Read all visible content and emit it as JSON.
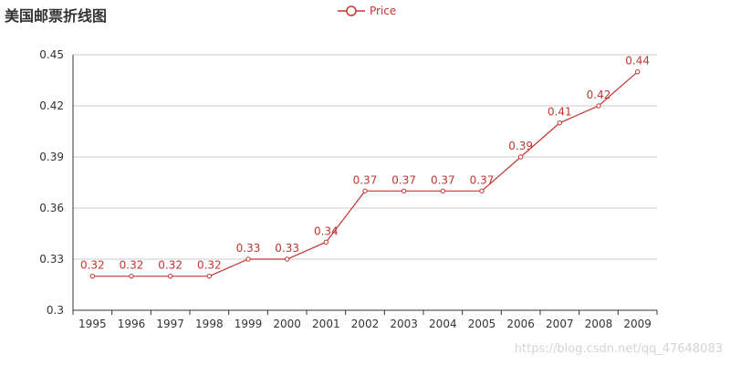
{
  "title": "美国邮票折线图",
  "watermark": "https://blog.csdn.net/qq_47648083",
  "colors": {
    "series": "#c23531",
    "grid": "#cccccc",
    "axis": "#333333",
    "text": "#333333"
  },
  "legend": {
    "label": "Price",
    "icon": "line-circle-icon",
    "placement": "top-center"
  },
  "chart_data": {
    "type": "line",
    "title": "美国邮票折线图",
    "xlabel": "",
    "ylabel": "",
    "categories": [
      "1995",
      "1996",
      "1997",
      "1998",
      "1999",
      "2000",
      "2001",
      "2002",
      "2003",
      "2004",
      "2005",
      "2006",
      "2007",
      "2008",
      "2009"
    ],
    "series": [
      {
        "name": "Price",
        "values": [
          0.32,
          0.32,
          0.32,
          0.32,
          0.33,
          0.33,
          0.34,
          0.37,
          0.37,
          0.37,
          0.37,
          0.39,
          0.41,
          0.42,
          0.44
        ],
        "labels": [
          "0.32",
          "0.32",
          "0.32",
          "0.32",
          "0.33",
          "0.33",
          "0.34",
          "0.37",
          "0.37",
          "0.37",
          "0.37",
          "0.39",
          "0.41",
          "0.42",
          "0.44"
        ]
      }
    ],
    "ylim": [
      0.3,
      0.45
    ],
    "yticks": [
      0.3,
      0.33,
      0.36,
      0.39,
      0.42,
      0.45
    ],
    "ytick_labels": [
      "0.3",
      "0.33",
      "0.36",
      "0.39",
      "0.42",
      "0.45"
    ],
    "grid": true
  }
}
